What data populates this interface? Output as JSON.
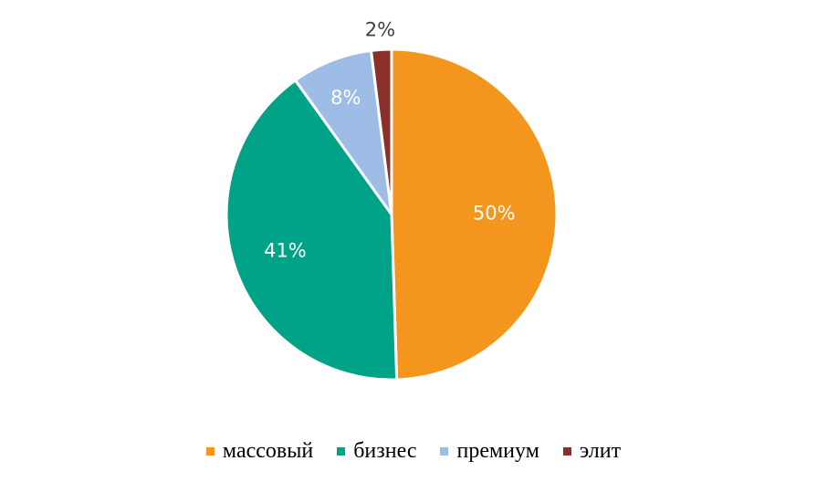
{
  "chart_data": {
    "type": "pie",
    "title": "",
    "categories": [
      "массовый",
      "бизнес",
      "премиум",
      "элит"
    ],
    "values": [
      50,
      41,
      8,
      2
    ],
    "labels": [
      "50%",
      "41%",
      "8%",
      "2%"
    ],
    "colors": [
      "#F4961E",
      "#00A387",
      "#9DBCE6",
      "#8B2F2B"
    ],
    "label_colors": [
      "#ffffff",
      "#ffffff",
      "#ffffff",
      "#404040"
    ],
    "legend_position": "bottom",
    "start_angle": "12 o'clock, clockwise"
  }
}
